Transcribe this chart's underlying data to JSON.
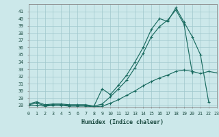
{
  "title": "",
  "xlabel": "Humidex (Indice chaleur)",
  "xlim": [
    0,
    23
  ],
  "ylim": [
    27.8,
    42
  ],
  "background_color": "#cce8ea",
  "line_color": "#1a6b60",
  "grid_color": "#a0c8cc",
  "xticks": [
    0,
    1,
    2,
    3,
    4,
    5,
    6,
    7,
    8,
    9,
    10,
    11,
    12,
    13,
    14,
    15,
    16,
    17,
    18,
    19,
    20,
    21,
    22,
    23
  ],
  "yticks": [
    28,
    29,
    30,
    31,
    32,
    33,
    34,
    35,
    36,
    37,
    38,
    39,
    40,
    41
  ],
  "line1_y": [
    28.2,
    28.5,
    28.1,
    28.2,
    28.2,
    28.1,
    28.1,
    28.1,
    27.9,
    30.3,
    29.5,
    30.8,
    32.2,
    34.0,
    36.0,
    38.5,
    40.0,
    39.6,
    41.5,
    39.5,
    37.5,
    35.0,
    28.5,
    null
  ],
  "line2_y": [
    28.1,
    28.3,
    28.0,
    28.1,
    28.1,
    28.0,
    28.0,
    28.0,
    27.9,
    28.2,
    29.2,
    30.3,
    31.5,
    33.2,
    35.2,
    37.5,
    38.9,
    39.8,
    41.2,
    39.2,
    32.5,
    null,
    null,
    null
  ],
  "line3_y": [
    28.0,
    28.0,
    27.9,
    28.0,
    28.0,
    27.9,
    27.9,
    27.9,
    27.8,
    27.9,
    28.3,
    28.8,
    29.4,
    30.0,
    30.7,
    31.3,
    31.8,
    32.2,
    32.7,
    32.9,
    32.7,
    32.4,
    32.7,
    32.5
  ]
}
